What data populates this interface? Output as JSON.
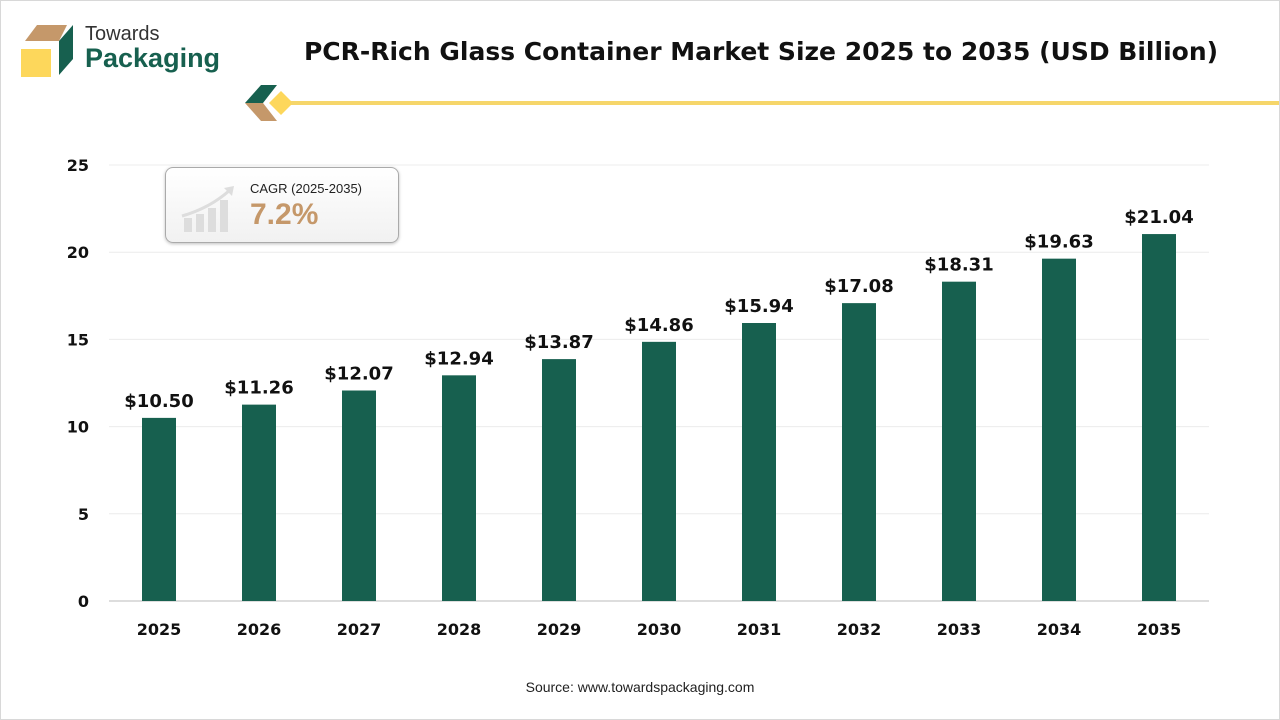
{
  "logo": {
    "line1": "Towards",
    "line2": "Packaging"
  },
  "title": "PCR-Rich Glass Container Market Size 2025 to 2035 (USD Billion)",
  "cagr": {
    "label": "CAGR (2025-2035)",
    "value": "7.2%"
  },
  "source": "Source: www.towardspackaging.com",
  "chart_data": {
    "type": "bar",
    "title": "PCR-Rich Glass Container Market Size 2025 to 2035 (USD Billion)",
    "categories": [
      "2025",
      "2026",
      "2027",
      "2028",
      "2029",
      "2030",
      "2031",
      "2032",
      "2033",
      "2034",
      "2035"
    ],
    "values": [
      10.5,
      11.26,
      12.07,
      12.94,
      13.87,
      14.86,
      15.94,
      17.08,
      18.31,
      19.63,
      21.04
    ],
    "data_labels": [
      "$10.50",
      "$11.26",
      "$12.07",
      "$12.94",
      "$13.87",
      "$14.86",
      "$15.94",
      "$17.08",
      "$18.31",
      "$19.63",
      "$21.04"
    ],
    "ylim": [
      0,
      25
    ],
    "yticks": [
      0,
      5,
      10,
      15,
      20,
      25
    ],
    "grid": true,
    "bar_color": "#17604f"
  }
}
